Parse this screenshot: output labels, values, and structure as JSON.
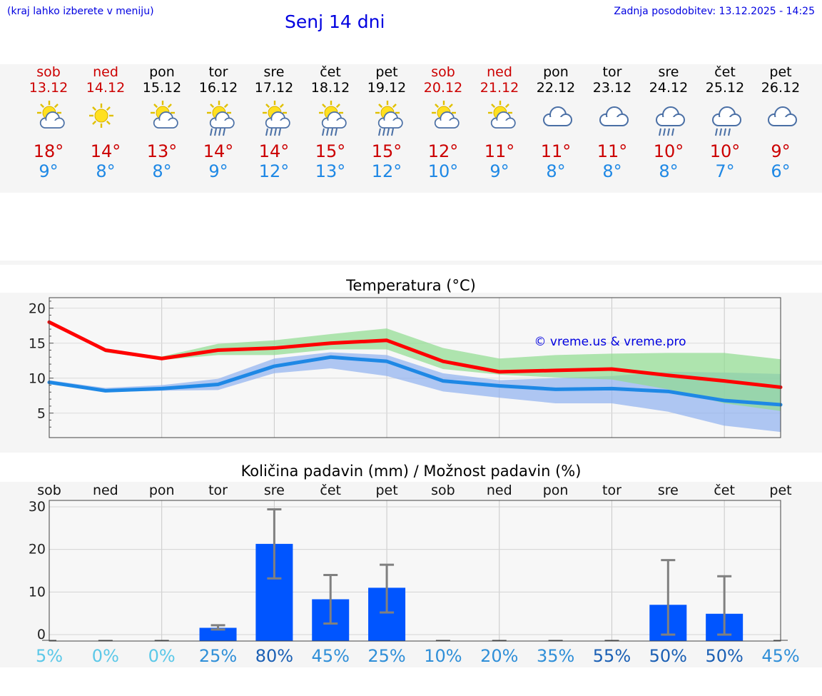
{
  "header": {
    "hint": "(kraj lahko izberete v meniju)",
    "title": "Senj 14 dni",
    "updated": "Zadnja posodobitev: 13.12.2025 - 14:25"
  },
  "days": [
    {
      "name": "sob",
      "date": "13.12",
      "weekend": true,
      "icon": "sun-cloud-icon",
      "max": "18°",
      "min": "9°"
    },
    {
      "name": "ned",
      "date": "14.12",
      "weekend": true,
      "icon": "sun-icon",
      "max": "14°",
      "min": "8°"
    },
    {
      "name": "pon",
      "date": "15.12",
      "weekend": false,
      "icon": "sun-cloud-icon",
      "max": "13°",
      "min": "8°"
    },
    {
      "name": "tor",
      "date": "16.12",
      "weekend": false,
      "icon": "sun-cloud-rain-icon",
      "max": "14°",
      "min": "9°"
    },
    {
      "name": "sre",
      "date": "17.12",
      "weekend": false,
      "icon": "sun-cloud-rain-icon",
      "max": "14°",
      "min": "12°"
    },
    {
      "name": "čet",
      "date": "18.12",
      "weekend": false,
      "icon": "sun-cloud-rain-icon",
      "max": "15°",
      "min": "13°"
    },
    {
      "name": "pet",
      "date": "19.12",
      "weekend": false,
      "icon": "sun-cloud-rain-icon",
      "max": "15°",
      "min": "12°"
    },
    {
      "name": "sob",
      "date": "20.12",
      "weekend": true,
      "icon": "sun-cloud-icon",
      "max": "12°",
      "min": "10°"
    },
    {
      "name": "ned",
      "date": "21.12",
      "weekend": true,
      "icon": "sun-cloud-icon",
      "max": "11°",
      "min": "9°"
    },
    {
      "name": "pon",
      "date": "22.12",
      "weekend": false,
      "icon": "cloud-icon",
      "max": "11°",
      "min": "8°"
    },
    {
      "name": "tor",
      "date": "23.12",
      "weekend": false,
      "icon": "cloud-icon",
      "max": "11°",
      "min": "8°"
    },
    {
      "name": "sre",
      "date": "24.12",
      "weekend": false,
      "icon": "cloud-rain-icon",
      "max": "10°",
      "min": "8°"
    },
    {
      "name": "čet",
      "date": "25.12",
      "weekend": false,
      "icon": "cloud-rain-icon",
      "max": "10°",
      "min": "7°"
    },
    {
      "name": "pet",
      "date": "26.12",
      "weekend": false,
      "icon": "cloud-icon",
      "max": "9°",
      "min": "6°"
    }
  ],
  "colors": {
    "max_line": "#ff0000",
    "min_line": "#1e88e5",
    "max_band": "#8fdc8f",
    "min_band": "#8fb0f0",
    "bar": "#0055ff",
    "error": "#808080",
    "weekend": "#cc0000",
    "temp_min_text": "#1e88e5"
  },
  "chart_data": [
    {
      "type": "line",
      "title": "Temperatura (°C)",
      "watermark": "© vreme.us & vreme.pro",
      "x": [
        0,
        1,
        2,
        3,
        4,
        5,
        6,
        7,
        8,
        9,
        10,
        11,
        12,
        13
      ],
      "ylim": [
        1.5,
        21.5
      ],
      "yticks": [
        5,
        10,
        15,
        20
      ],
      "series": [
        {
          "name": "max",
          "values": [
            18,
            14,
            12.8,
            14,
            14.3,
            15,
            15.4,
            12.4,
            10.9,
            11.1,
            11.3,
            10.4,
            9.6,
            8.7
          ]
        },
        {
          "name": "min",
          "values": [
            9.4,
            8.2,
            8.5,
            9.1,
            11.7,
            13,
            12.4,
            9.6,
            8.9,
            8.4,
            8.5,
            8.1,
            6.8,
            6.2
          ]
        }
      ],
      "bands": [
        {
          "name": "max_range",
          "low": [
            18,
            13.7,
            12.6,
            13.3,
            13.3,
            14.1,
            14.1,
            11.3,
            10.5,
            10.1,
            9.8,
            8.4,
            6.4,
            5.3
          ],
          "high": [
            18,
            14.1,
            13.1,
            14.9,
            15.4,
            16.3,
            17.1,
            14.3,
            12.8,
            13.3,
            13.5,
            13.6,
            13.6,
            12.7
          ]
        },
        {
          "name": "min_range",
          "low": [
            9.2,
            8,
            8.2,
            8.3,
            10.7,
            11.4,
            10.3,
            8.1,
            7.2,
            6.4,
            6.4,
            5.2,
            3.2,
            2.3
          ],
          "high": [
            9.7,
            8.6,
            9,
            9.9,
            12.8,
            13.7,
            13.3,
            10.7,
            9.7,
            10,
            10.3,
            10.9,
            10.8,
            10.6
          ]
        }
      ]
    },
    {
      "type": "bar",
      "title": "Količina padavin (mm) / Možnost padavin (%)",
      "categories": [
        "sob",
        "ned",
        "pon",
        "tor",
        "sre",
        "čet",
        "pet",
        "sob",
        "ned",
        "pon",
        "tor",
        "sre",
        "čet",
        "pet"
      ],
      "values": [
        0,
        0,
        0,
        1.6,
        21.3,
        8.3,
        11,
        0,
        0,
        0,
        0,
        7,
        4.9,
        0
      ],
      "error_low": [
        0,
        0,
        0,
        1.2,
        13.2,
        2.6,
        5.2,
        0,
        0,
        0,
        0,
        0,
        0,
        0
      ],
      "error_high": [
        0,
        0,
        0,
        2.2,
        29.4,
        14,
        16.4,
        0,
        0,
        0,
        0,
        17.5,
        13.7,
        0
      ],
      "probability": [
        "5%",
        "0%",
        "0%",
        "25%",
        "80%",
        "45%",
        "25%",
        "10%",
        "20%",
        "35%",
        "55%",
        "50%",
        "50%",
        "45%"
      ],
      "probability_colors": [
        "#5bc8e8",
        "#5bc8e8",
        "#5bc8e8",
        "#2f8fd8",
        "#1a5fb4",
        "#2f8fd8",
        "#2f8fd8",
        "#2f8fd8",
        "#2f8fd8",
        "#2f8fd8",
        "#1a5fb4",
        "#1a5fb4",
        "#1a5fb4",
        "#2f8fd8"
      ],
      "ylim": [
        -1.5,
        31.5
      ],
      "yticks": [
        0,
        10,
        20,
        30
      ],
      "ytick_labels": [
        "0",
        "10",
        "20",
        "30"
      ]
    }
  ]
}
